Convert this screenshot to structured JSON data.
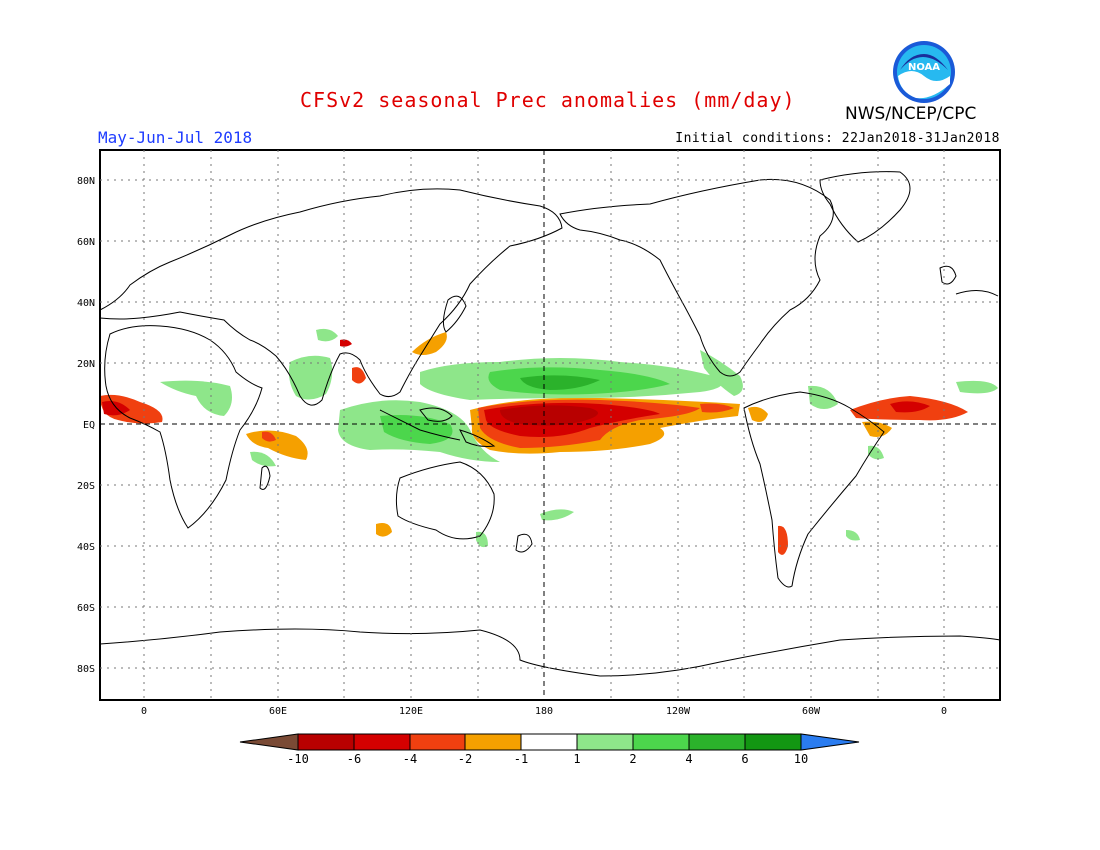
{
  "header": {
    "title": "CFSv2 seasonal Prec anomalies (mm/day)",
    "season": "May-Jun-Jul 2018",
    "init": "Initial conditions: 22Jan2018-31Jan2018",
    "agency": "NWS/NCEP/CPC",
    "logo_text": "NOAA"
  },
  "axes": {
    "lat_labels": [
      "80N",
      "60N",
      "40N",
      "20N",
      "EQ",
      "20S",
      "40S",
      "60S",
      "80S"
    ],
    "lon_labels": [
      "0",
      "60E",
      "120E",
      "180",
      "120W",
      "60W",
      "0"
    ]
  },
  "colorbar": {
    "labels": [
      "-10",
      "-6",
      "-4",
      "-2",
      "-1",
      "1",
      "2",
      "4",
      "6",
      "10"
    ],
    "colors": [
      "#7a4a35",
      "#b80000",
      "#d40000",
      "#f04010",
      "#f5a000",
      "#ffffff",
      "#8ee68a",
      "#4cd64c",
      "#2bb22b",
      "#129612",
      "#2a7cf0"
    ]
  },
  "anomaly_colors": {
    "dry_strong": "#b80000",
    "dry_medium": "#d40000",
    "dry_light": "#f04010",
    "dry_weak": "#f5a000",
    "wet_weak": "#8ee68a",
    "wet_light": "#4cd64c",
    "wet_medium": "#2bb22b"
  }
}
